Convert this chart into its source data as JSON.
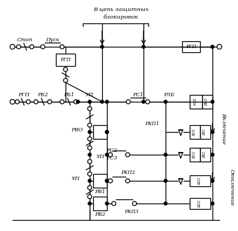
{
  "bg_color": "#ffffff",
  "line_color": "#000000",
  "fig_width": 3.45,
  "fig_height": 3.36,
  "dpi": 100,
  "top_text1": "В цепь защитных",
  "top_text2": "блокировок",
  "right_label_inc": "Включение",
  "right_label_off": "Отключение",
  "lw": 0.9
}
